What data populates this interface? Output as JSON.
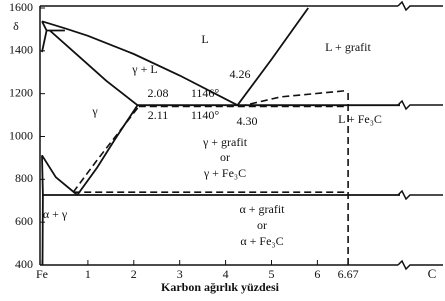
{
  "chart_data": {
    "type": "line",
    "x_label": "Karbon ağırlık yüzdesi",
    "xlim": [
      0,
      7.8
    ],
    "ylim": [
      400,
      1600
    ],
    "xticks": [
      {
        "value": 0,
        "label": "Fe"
      },
      1,
      2,
      3,
      4,
      5,
      6,
      6.67
    ],
    "yticks": [
      400,
      600,
      800,
      1000,
      1200,
      1400,
      1600
    ],
    "axis_end_label": "C",
    "color": "#111111",
    "series": [
      {
        "style": "solid",
        "x": [
          0,
          0.5,
          1,
          2,
          3,
          4.26
        ],
        "values": [
          1538,
          1505,
          1470,
          1385,
          1285,
          1146
        ]
      },
      {
        "style": "solid",
        "x": [
          4.26,
          5,
          5.8
        ],
        "values": [
          1146,
          1360,
          1600
        ]
      },
      {
        "style": "solid",
        "x": [
          0.17,
          0.8,
          1.4,
          2.08
        ],
        "values": [
          1495,
          1375,
          1260,
          1146
        ]
      },
      {
        "style": "solid",
        "x": [
          0,
          0.1,
          0.5
        ],
        "values": [
          1394,
          1495,
          1495
        ]
      },
      {
        "style": "solid",
        "x": [
          0,
          0.1
        ],
        "values": [
          1538,
          1495
        ]
      },
      {
        "style": "solid",
        "x": [
          0,
          0.3,
          0.77
        ],
        "values": [
          912,
          810,
          727
        ]
      },
      {
        "style": "solid",
        "x": [
          0,
          0.02,
          0.01
        ],
        "values": [
          912,
          727,
          400
        ]
      },
      {
        "style": "solid",
        "x": [
          0.77,
          1.2,
          1.6,
          2.08
        ],
        "values": [
          727,
          855,
          990,
          1146
        ]
      },
      {
        "style": "solid",
        "x": [
          2.08,
          7.8
        ],
        "values": [
          1146,
          1146
        ]
      },
      {
        "style": "solid",
        "x": [
          0.02,
          7.8
        ],
        "values": [
          727,
          727
        ]
      },
      {
        "style": "dashed",
        "x": [
          2.11,
          6.67
        ],
        "values": [
          1140,
          1140
        ]
      },
      {
        "style": "dashed",
        "x": [
          0.68,
          6.67
        ],
        "values": [
          740,
          740
        ]
      },
      {
        "style": "dashed",
        "x": [
          0.68,
          1.2,
          2.11
        ],
        "values": [
          740,
          890,
          1140
        ]
      },
      {
        "style": "dashed",
        "x": [
          4.3,
          5.2,
          6.67
        ],
        "values": [
          1140,
          1185,
          1215
        ]
      },
      {
        "style": "dashed",
        "x": [
          6.67,
          6.67
        ],
        "values": [
          400,
          1215
        ]
      }
    ],
    "annotations": [
      "δ",
      "L",
      "L + grafit",
      "γ + L",
      "γ",
      "4.26",
      "2.08",
      "1146°",
      "4.30",
      "2.11",
      "1140°",
      "L + Fe₃C",
      "γ + grafit",
      "or",
      "γ + Fe₃C",
      "α + γ",
      "α + grafit",
      "or",
      "α + Fe₃C"
    ]
  }
}
